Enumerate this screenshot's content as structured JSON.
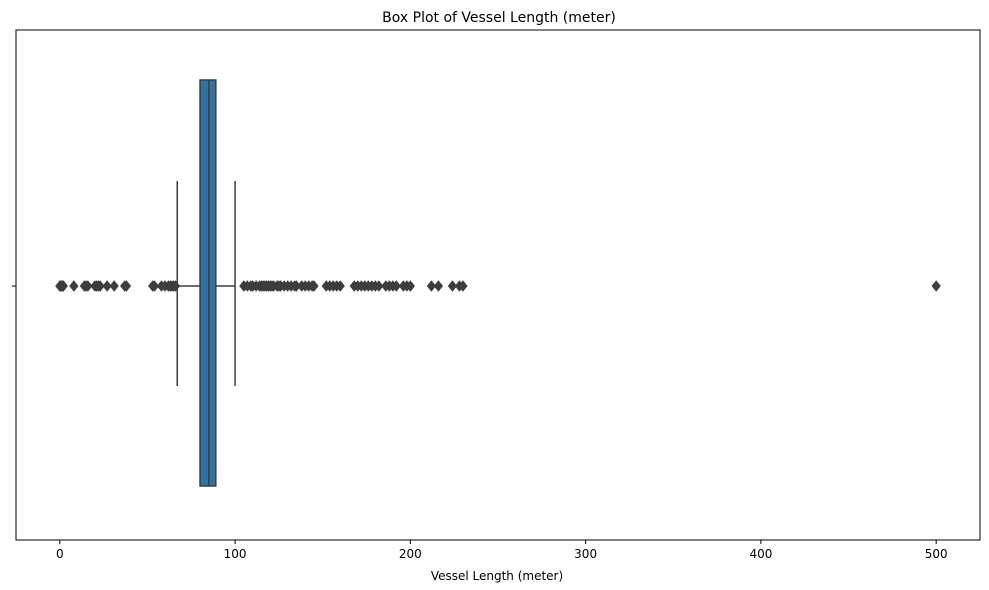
{
  "chart_data": {
    "type": "boxplot",
    "title": "Box Plot of Vessel Length (meter)",
    "xlabel": "Vessel Length (meter)",
    "ylabel": "",
    "xlim": [
      -25,
      525
    ],
    "xticks": [
      0,
      100,
      200,
      300,
      400,
      500
    ],
    "orientation": "horizontal",
    "grid": false,
    "box": {
      "whisker_low": 67,
      "q1": 80,
      "median": 85,
      "q3": 89,
      "whisker_high": 100,
      "color": "#3274a1",
      "edge_color": "#3d3d3d"
    },
    "outliers": [
      0,
      0.5,
      1,
      1.5,
      2,
      8,
      14,
      15,
      16,
      20,
      21,
      22,
      23,
      27,
      31,
      37,
      38,
      53,
      54,
      58,
      60,
      62,
      63,
      64,
      65,
      66,
      105,
      107,
      109,
      110,
      112,
      114,
      115,
      116,
      117,
      118,
      119,
      120,
      121,
      122,
      124,
      125,
      126,
      128,
      130,
      132,
      134,
      135,
      138,
      140,
      142,
      144,
      145,
      152,
      154,
      156,
      158,
      160,
      168,
      170,
      172,
      174,
      176,
      178,
      180,
      182,
      186,
      188,
      190,
      192,
      196,
      198,
      200,
      212,
      216,
      224,
      228,
      230,
      500
    ]
  }
}
